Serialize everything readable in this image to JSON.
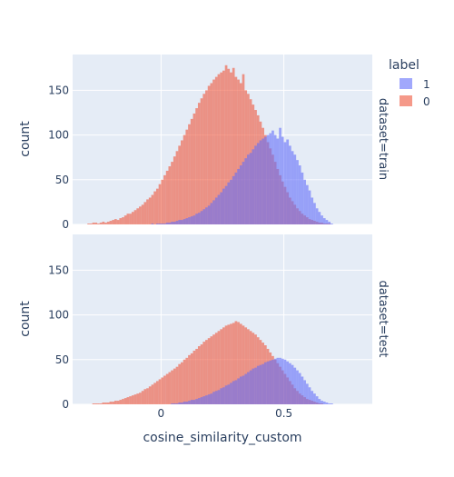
{
  "chart_data": [
    {
      "type": "bar",
      "facet_label": "dataset=train",
      "ylabel": "count",
      "ylim": [
        0,
        190
      ],
      "yticks": [
        0,
        50,
        100,
        150
      ],
      "xlim": [
        -0.36,
        0.86
      ],
      "bin_width": 0.01,
      "bin_start": -0.3,
      "series": [
        {
          "name": "0",
          "color": "#EF553B",
          "values": [
            1,
            1,
            2,
            2,
            1,
            2,
            3,
            2,
            3,
            4,
            5,
            6,
            5,
            7,
            8,
            10,
            12,
            12,
            14,
            16,
            18,
            20,
            22,
            25,
            28,
            30,
            33,
            37,
            40,
            45,
            50,
            55,
            60,
            65,
            70,
            76,
            82,
            88,
            94,
            100,
            106,
            112,
            118,
            124,
            130,
            136,
            141,
            146,
            150,
            155,
            158,
            162,
            165,
            168,
            170,
            172,
            178,
            174,
            170,
            175,
            165,
            162,
            158,
            168,
            150,
            146,
            140,
            134,
            128,
            122,
            115,
            108,
            100,
            92,
            85,
            78,
            70,
            62,
            55,
            48,
            42,
            36,
            30,
            26,
            22,
            18,
            15,
            12,
            10,
            8,
            6,
            5,
            4,
            3,
            2,
            2,
            1,
            1,
            1,
            0
          ]
        },
        {
          "name": "1",
          "color": "#636EFA",
          "values": [
            0,
            0,
            0,
            0,
            0,
            0,
            0,
            0,
            0,
            0,
            0,
            0,
            0,
            0,
            0,
            0,
            0,
            0,
            0,
            0,
            0,
            0,
            0,
            0,
            0,
            0,
            1,
            0,
            1,
            1,
            1,
            1,
            2,
            2,
            3,
            3,
            4,
            5,
            5,
            6,
            7,
            8,
            9,
            10,
            12,
            13,
            15,
            17,
            19,
            21,
            24,
            27,
            30,
            33,
            36,
            40,
            43,
            47,
            50,
            54,
            58,
            62,
            66,
            70,
            74,
            78,
            80,
            84,
            88,
            91,
            94,
            96,
            98,
            100,
            102,
            105,
            100,
            96,
            108,
            98,
            92,
            95,
            88,
            82,
            78,
            72,
            66,
            58,
            50,
            44,
            38,
            30,
            24,
            18,
            14,
            10,
            7,
            5,
            3,
            1
          ]
        }
      ]
    },
    {
      "type": "bar",
      "facet_label": "dataset=test",
      "ylabel": "count",
      "ylim": [
        0,
        190
      ],
      "yticks": [
        0,
        50,
        100,
        150
      ],
      "xlim": [
        -0.36,
        0.86
      ],
      "bin_width": 0.01,
      "bin_start": -0.3,
      "xlabel": "cosine_similarity_custom",
      "xticks": [
        0,
        0.5
      ],
      "series": [
        {
          "name": "0",
          "color": "#EF553B",
          "values": [
            0,
            0,
            1,
            1,
            1,
            1,
            2,
            2,
            2,
            3,
            3,
            4,
            4,
            5,
            6,
            7,
            8,
            9,
            10,
            11,
            12,
            13,
            15,
            17,
            18,
            20,
            22,
            24,
            26,
            28,
            30,
            32,
            34,
            36,
            38,
            40,
            42,
            45,
            47,
            50,
            52,
            55,
            57,
            60,
            62,
            65,
            67,
            70,
            72,
            74,
            76,
            78,
            80,
            82,
            84,
            86,
            88,
            89,
            90,
            91,
            93,
            92,
            90,
            88,
            86,
            84,
            82,
            80,
            78,
            75,
            72,
            69,
            66,
            62,
            58,
            54,
            50,
            46,
            42,
            38,
            34,
            30,
            26,
            22,
            18,
            15,
            12,
            10,
            8,
            6,
            5,
            4,
            3,
            2,
            1,
            1,
            0,
            0,
            0,
            0
          ]
        },
        {
          "name": "1",
          "color": "#636EFA",
          "values": [
            0,
            0,
            0,
            0,
            0,
            0,
            0,
            0,
            0,
            0,
            0,
            0,
            0,
            0,
            0,
            0,
            0,
            0,
            0,
            0,
            0,
            0,
            0,
            0,
            0,
            0,
            0,
            0,
            0,
            0,
            0,
            0,
            0,
            0,
            1,
            1,
            1,
            2,
            2,
            3,
            3,
            4,
            5,
            5,
            6,
            7,
            8,
            9,
            10,
            11,
            12,
            14,
            15,
            16,
            18,
            19,
            21,
            22,
            24,
            26,
            27,
            29,
            31,
            32,
            34,
            36,
            38,
            40,
            41,
            43,
            44,
            45,
            47,
            48,
            49,
            50,
            51,
            52,
            52,
            51,
            50,
            48,
            46,
            44,
            41,
            38,
            35,
            31,
            27,
            23,
            19,
            15,
            12,
            9,
            6,
            4,
            3,
            2,
            1,
            1
          ]
        }
      ]
    }
  ],
  "legend": {
    "title": "label",
    "placement": "top-right",
    "items": [
      {
        "name": "1",
        "color": "#636EFA"
      },
      {
        "name": "0",
        "color": "#EF553B"
      }
    ]
  },
  "colors": {
    "plot_bg": "#E5ECF6",
    "grid": "#ffffff",
    "facet_strip_bg": "#E5ECF6",
    "text": "#2a3f5f"
  }
}
